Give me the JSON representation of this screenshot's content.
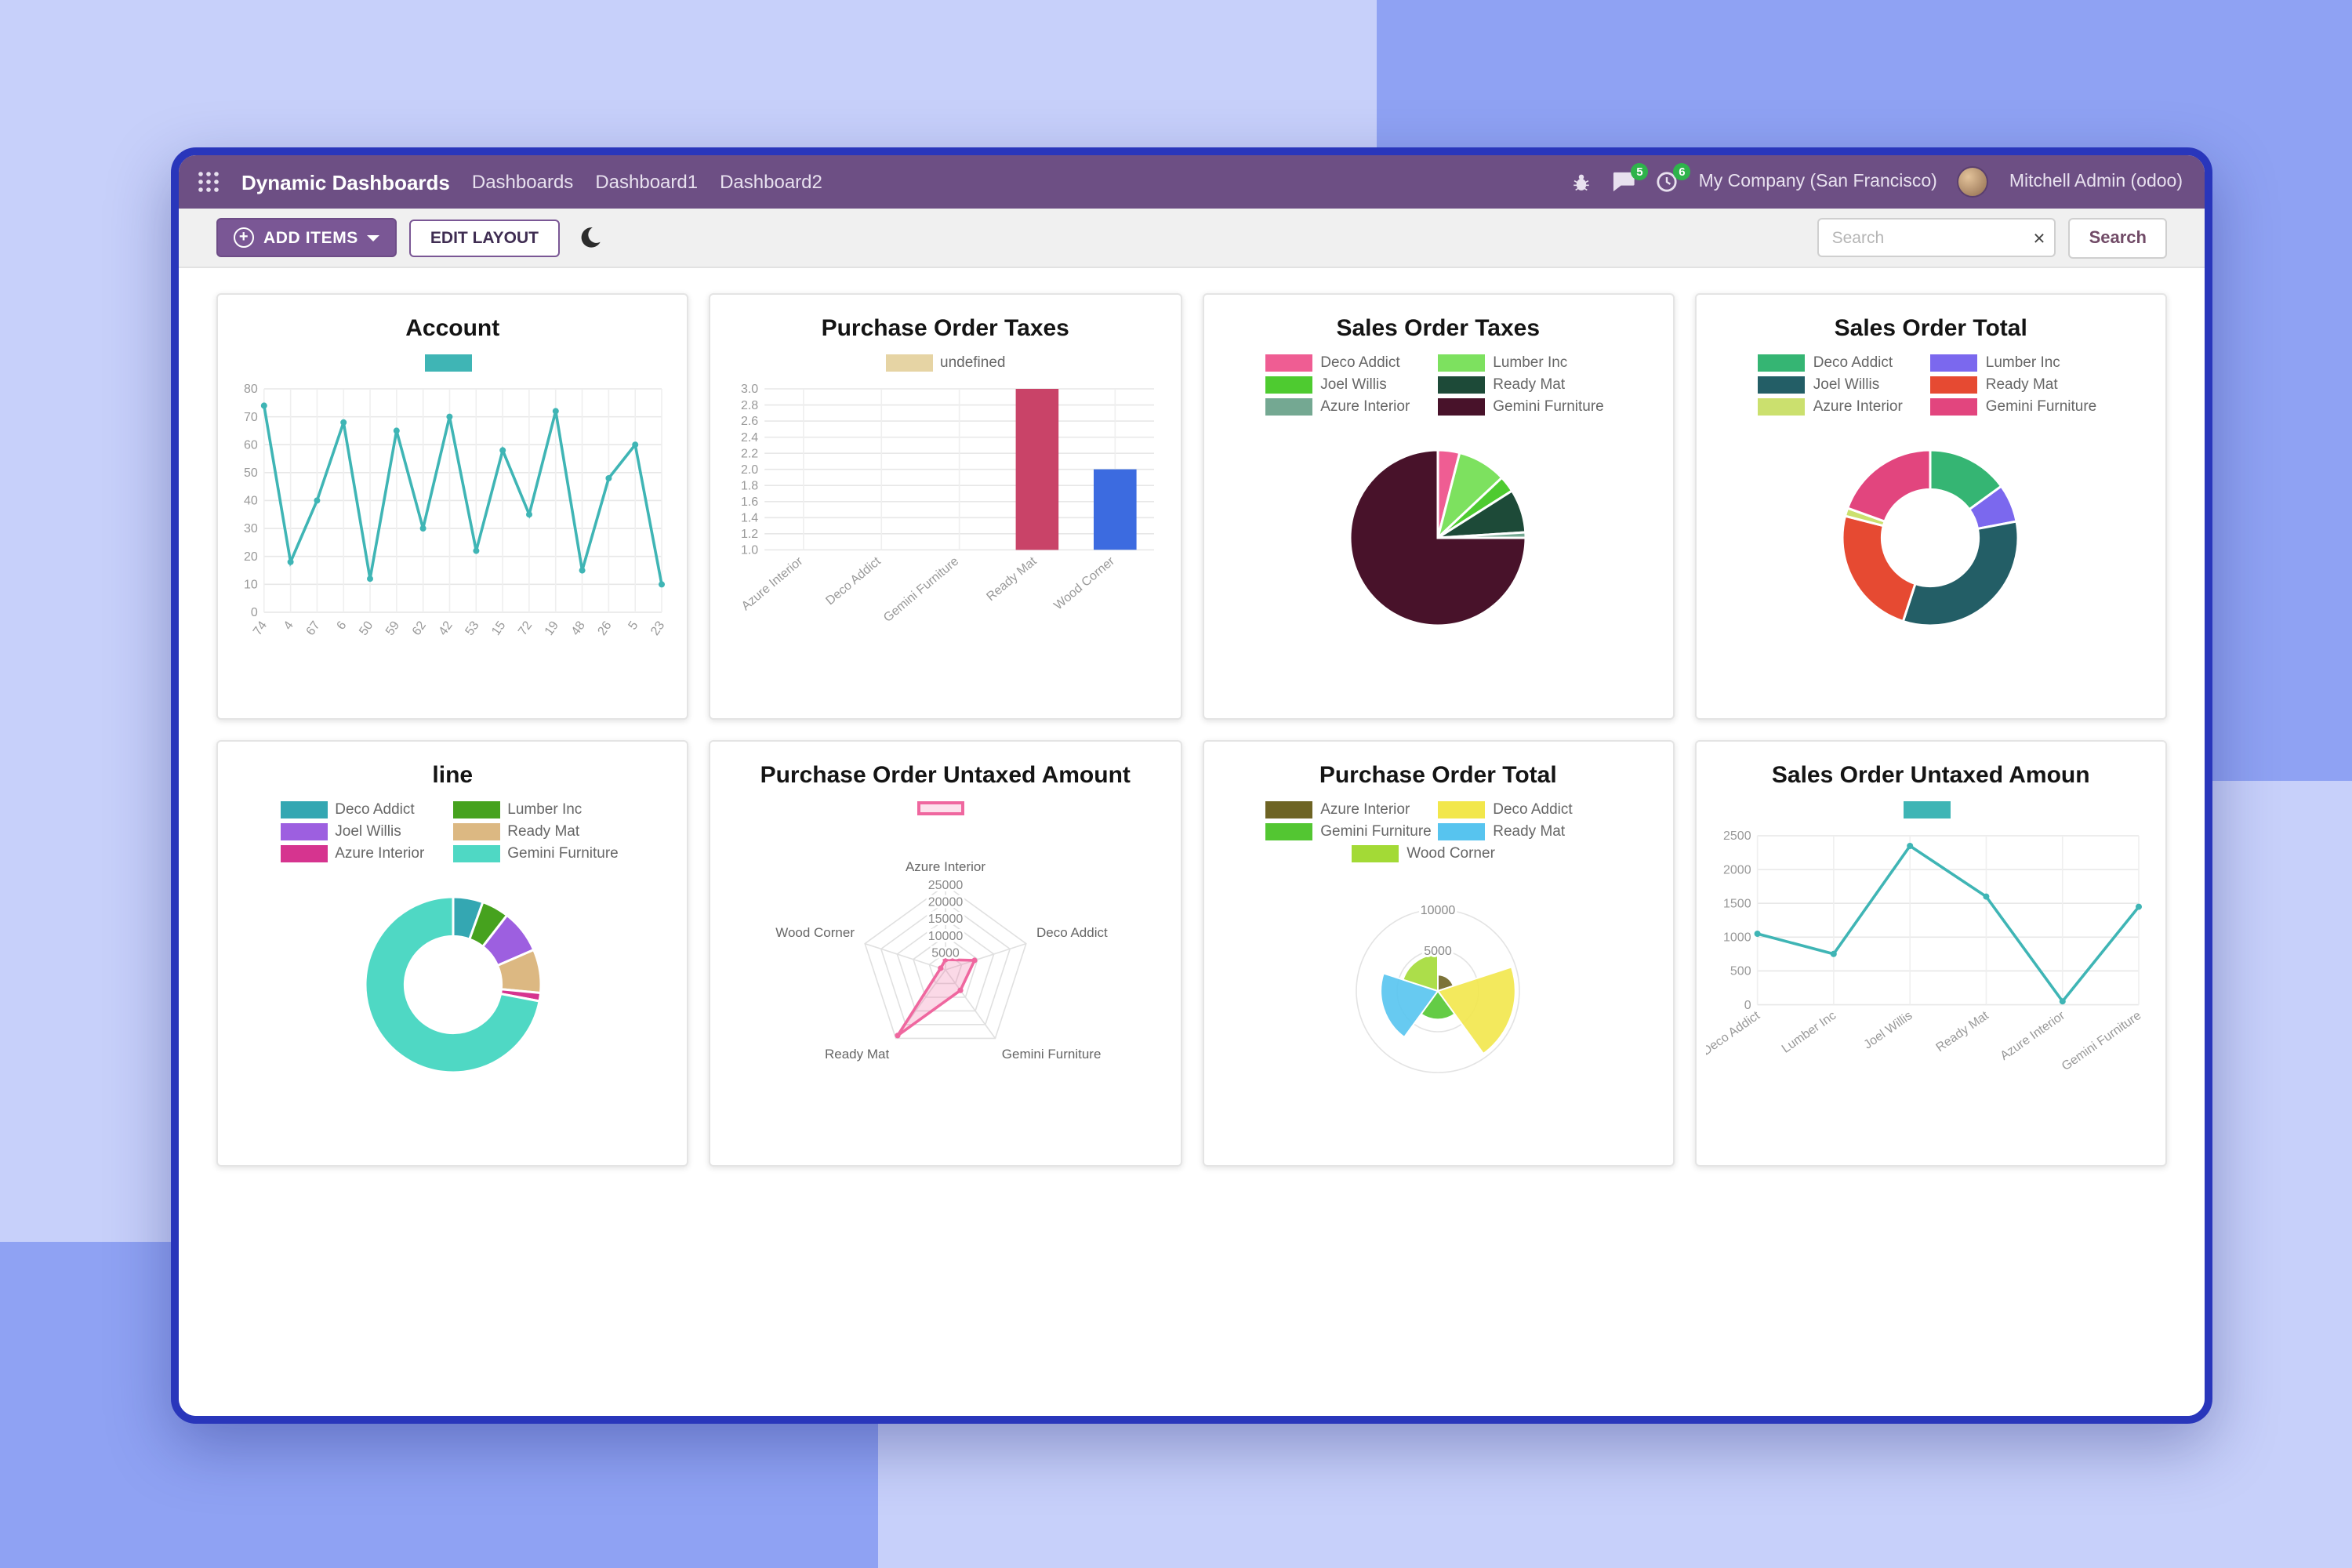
{
  "theme": {
    "background_base": "#c7d0fa",
    "background_accent": "#8fa2f3",
    "window_border": "#2936bb",
    "navbar_bg": "#6d4f84",
    "primary_button": "#7a5795",
    "badge_green": "#2eb34b"
  },
  "navbar": {
    "app_title": "Dynamic Dashboards",
    "menu_items": [
      "Dashboards",
      "Dashboard1",
      "Dashboard2"
    ],
    "systray": {
      "messages_badge": "5",
      "activities_badge": "6",
      "company": "My Company (San Francisco)",
      "user": "Mitchell Admin (odoo)"
    }
  },
  "toolbar": {
    "add_items_label": "ADD ITEMS",
    "edit_layout_label": "EDIT LAYOUT",
    "search_placeholder": "Search",
    "clear_icon": "×",
    "search_button_label": "Search"
  },
  "chart_data": [
    {
      "title": "Account",
      "type": "line",
      "categories": [
        "74",
        "4",
        "67",
        "6",
        "50",
        "59",
        "62",
        "42",
        "53",
        "15",
        "72",
        "19",
        "48",
        "26",
        "5",
        "23"
      ],
      "values": [
        74,
        18,
        40,
        68,
        12,
        65,
        30,
        70,
        22,
        58,
        35,
        72,
        15,
        48,
        60,
        10
      ],
      "color": "#3fb5b5",
      "ylim": [
        0,
        80
      ],
      "ytick_step": 10,
      "rot": -55,
      "legend": [
        {
          "label": "",
          "color": "#3fb5b5"
        }
      ]
    },
    {
      "title": "Purchase Order Taxes",
      "type": "bar",
      "categories": [
        "Azure Interior",
        "Deco Addict",
        "Gemini Furniture",
        "Ready Mat",
        "Wood Corner"
      ],
      "values": [
        null,
        null,
        null,
        3,
        2
      ],
      "bar_colors": [
        null,
        null,
        null,
        "#c94368",
        "#3c6be0"
      ],
      "ylim": [
        1,
        3
      ],
      "ytick_step": 0.2,
      "rot": -40,
      "legend": [
        {
          "label": "undefined",
          "color": "#e6d4a4"
        }
      ]
    },
    {
      "title": "Sales Order Taxes",
      "type": "pie",
      "labels": [
        "Deco Addict",
        "Lumber Inc",
        "Joel Willis",
        "Ready Mat",
        "Azure Interior",
        "Gemini Furniture"
      ],
      "values": [
        4,
        9,
        3,
        8,
        1,
        75
      ],
      "colors": [
        "#ef5d93",
        "#7de15f",
        "#4ecb30",
        "#1d4a38",
        "#74a892",
        "#48122a"
      ]
    },
    {
      "title": "Sales Order Total",
      "type": "doughnut",
      "labels": [
        "Deco Addict",
        "Lumber Inc",
        "Joel Willis",
        "Ready Mat",
        "Azure Interior",
        "Gemini Furniture"
      ],
      "values": [
        15,
        7,
        33,
        24,
        1.5,
        19.5
      ],
      "colors": [
        "#35b573",
        "#7b68ee",
        "#235e66",
        "#e64a32",
        "#cbe06e",
        "#e2457e"
      ]
    },
    {
      "title": "line",
      "type": "doughnut",
      "labels": [
        "Deco Addict",
        "Lumber Inc",
        "Joel Willis",
        "Ready Mat",
        "Azure Interior",
        "Gemini Furniture"
      ],
      "values": [
        5.5,
        5,
        8,
        8,
        1.5,
        72
      ],
      "colors": [
        "#34a7b2",
        "#46a21e",
        "#9d5fe0",
        "#dcb882",
        "#d6348f",
        "#4fd8c4"
      ]
    },
    {
      "title": "Purchase Order Untaxed Amount",
      "type": "radar",
      "axes": [
        "Azure Interior",
        "Deco Addict",
        "Gemini Furniture",
        "Ready Mat",
        "Wood Corner"
      ],
      "values": [
        3000,
        9000,
        7500,
        24000,
        1500
      ],
      "rmax": 25000,
      "rticks": [
        5000,
        10000,
        15000,
        20000,
        25000
      ],
      "color": "#ef679f",
      "legend": [
        {
          "label": "",
          "color": "#ef679f",
          "style": "outline"
        }
      ]
    },
    {
      "title": "Purchase Order Total",
      "type": "polarArea",
      "labels": [
        "Azure Interior",
        "Deco Addict",
        "Gemini Furniture",
        "Ready Mat",
        "Wood Corner"
      ],
      "values": [
        2000,
        9500,
        3500,
        7000,
        4500
      ],
      "colors": [
        "#6e6424",
        "#f2e74b",
        "#53c632",
        "#57c4ef",
        "#a3da36"
      ],
      "rmax": 10000,
      "rticks": [
        5000,
        10000
      ]
    },
    {
      "title": "Sales Order Untaxed Amoun",
      "type": "line",
      "categories": [
        "Deco Addict",
        "Lumber Inc",
        "Joel Willis",
        "Ready Mat",
        "Azure Interior",
        "Gemini Furniture"
      ],
      "values": [
        1050,
        750,
        2350,
        1600,
        50,
        1450
      ],
      "color": "#3fb5b5",
      "ylim": [
        0,
        2500
      ],
      "ytick_step": 500,
      "rot": -35,
      "legend": [
        {
          "label": "",
          "color": "#3fb5b5"
        }
      ]
    }
  ]
}
